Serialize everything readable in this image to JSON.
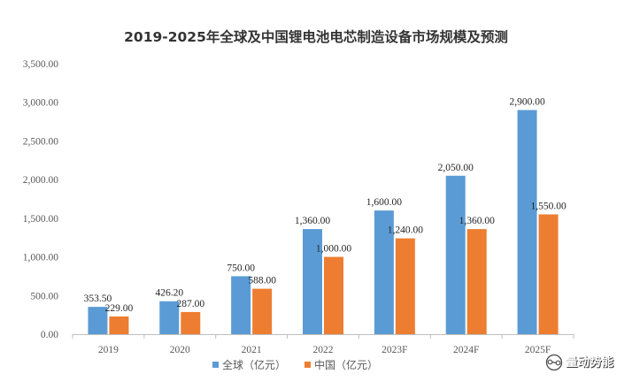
{
  "chart_data": {
    "type": "bar",
    "title": "2019-2025年全球及中国锂电池电芯制造设备市场规模及预测",
    "categories": [
      "2019",
      "2020",
      "2021",
      "2022",
      "2023F",
      "2024F",
      "2025F"
    ],
    "series": [
      {
        "name": "全球（亿元）",
        "color": "#5b9bd5",
        "values": [
          353.5,
          426.2,
          750.0,
          1360.0,
          1600.0,
          2050.0,
          2900.0
        ],
        "labels": [
          "353.50",
          "426.20",
          "750.00",
          "1,360.00",
          "1,600.00",
          "2,050.00",
          "2,900.00"
        ]
      },
      {
        "name": "中国（亿元）",
        "color": "#ed7d31",
        "values": [
          229.0,
          287.0,
          588.0,
          1000.0,
          1240.0,
          1360.0,
          1550.0
        ],
        "labels": [
          "229.00",
          "287.00",
          "588.00",
          "1,000.00",
          "1,240.00",
          "1,360.00",
          "1,550.00"
        ]
      }
    ],
    "ylim": [
      0,
      3500
    ],
    "yticks": [
      0,
      500,
      1000,
      1500,
      2000,
      2500,
      3000,
      3500
    ],
    "ytick_labels": [
      "0.00",
      "500.00",
      "1,000.00",
      "1,500.00",
      "2,000.00",
      "2,500.00",
      "3,000.00",
      "3,500.00"
    ],
    "xlabel": "",
    "ylabel": "",
    "grid": false,
    "legend_position": "bottom-center"
  },
  "watermark": {
    "text": "量动势能",
    "icon": "wechat-icon"
  }
}
